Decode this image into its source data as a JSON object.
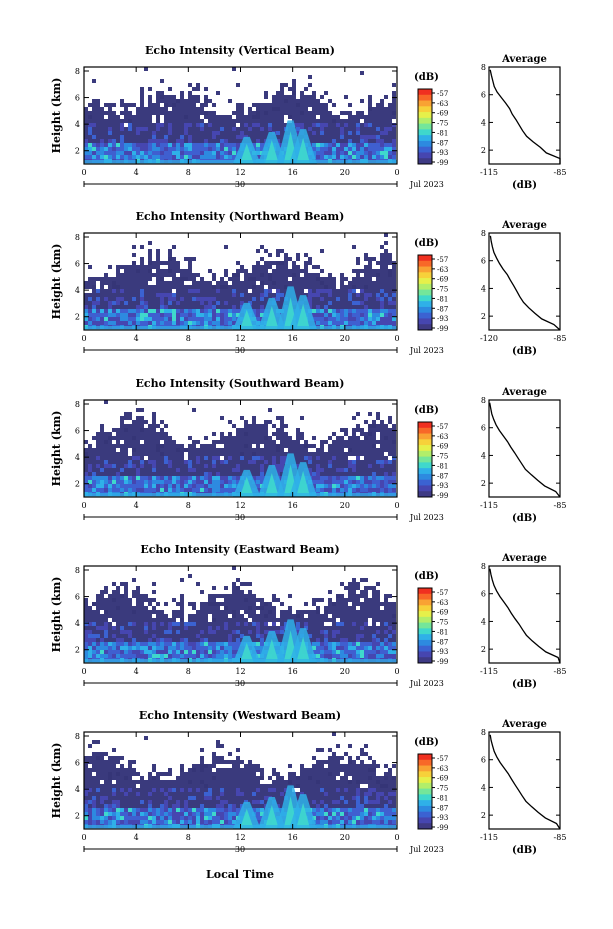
{
  "chart_data": {
    "type": "heatmap",
    "x_ticks": [
      "0",
      "4",
      "8",
      "12",
      "16",
      "20",
      "0"
    ],
    "x_date_label": "30",
    "x_month_year": "Jul 2023",
    "xlabel_bottom": "Local Time",
    "ylabel": "Height (km)",
    "y_ticks": [
      "2",
      "4",
      "6",
      "8"
    ],
    "ylim": [
      1,
      8.3
    ],
    "colorbar": {
      "unit_label": "(dB)",
      "ticks": [
        "-57",
        "-63",
        "-69",
        "-75",
        "-81",
        "-87",
        "-93",
        "-99"
      ],
      "colors": [
        "#F03020",
        "#F86828",
        "#F9A233",
        "#F7D13A",
        "#E6F04A",
        "#B2EE6A",
        "#74E69A",
        "#3FD8CC",
        "#2FB0E8",
        "#2D8AE0",
        "#3B62D2",
        "#4646B0",
        "#3E3A84"
      ]
    },
    "panels": [
      {
        "title": "Echo Intensity (Vertical Beam)",
        "average": {
          "title": "Average",
          "xlabel": "(dB)",
          "xticks": [
            "-115",
            "-85"
          ],
          "xlim": [
            -115,
            -85
          ],
          "ylim": [
            1,
            8
          ],
          "profile": [
            [
              -82.8,
              1.0
            ],
            [
              -84.5,
              1.4
            ],
            [
              -90.8,
              1.8
            ],
            [
              -93.3,
              2.2
            ],
            [
              -96.4,
              2.6
            ],
            [
              -99.1,
              3.0
            ],
            [
              -100.8,
              3.4
            ],
            [
              -102.2,
              3.8
            ],
            [
              -103.6,
              4.2
            ],
            [
              -105.2,
              4.6
            ],
            [
              -106.3,
              5.0
            ],
            [
              -108.0,
              5.4
            ],
            [
              -109.8,
              5.8
            ],
            [
              -111.6,
              6.2
            ],
            [
              -112.8,
              6.6
            ],
            [
              -113.4,
              7.0
            ],
            [
              -114.0,
              7.4
            ],
            [
              -114.5,
              7.8
            ]
          ]
        }
      },
      {
        "title": "Echo Intensity (Northward Beam)",
        "average": {
          "title": "Average",
          "xlabel": "(dB)",
          "xticks": [
            "-120",
            "-85"
          ],
          "xlim": [
            -120,
            -85
          ],
          "ylim": [
            1,
            8
          ],
          "profile": [
            [
              -84.8,
              1.0
            ],
            [
              -88.0,
              1.4
            ],
            [
              -94.0,
              1.8
            ],
            [
              -97.3,
              2.2
            ],
            [
              -100.4,
              2.6
            ],
            [
              -103.0,
              3.0
            ],
            [
              -104.8,
              3.4
            ],
            [
              -106.3,
              3.8
            ],
            [
              -107.8,
              4.2
            ],
            [
              -109.5,
              4.6
            ],
            [
              -111.0,
              5.0
            ],
            [
              -113.1,
              5.4
            ],
            [
              -114.8,
              5.8
            ],
            [
              -116.3,
              6.2
            ],
            [
              -117.6,
              6.6
            ],
            [
              -118.3,
              7.0
            ],
            [
              -118.9,
              7.4
            ],
            [
              -119.3,
              7.8
            ]
          ]
        }
      },
      {
        "title": "Echo Intensity (Southward Beam)",
        "average": {
          "title": "Average",
          "xlabel": "(dB)",
          "xticks": [
            "-115",
            "-85"
          ],
          "xlim": [
            -115,
            -85
          ],
          "ylim": [
            1,
            8
          ],
          "profile": [
            [
              -84.5,
              1.0
            ],
            [
              -86.8,
              1.4
            ],
            [
              -91.5,
              1.8
            ],
            [
              -94.4,
              2.2
            ],
            [
              -97.1,
              2.6
            ],
            [
              -99.6,
              3.0
            ],
            [
              -101.2,
              3.4
            ],
            [
              -102.7,
              3.8
            ],
            [
              -104.2,
              4.2
            ],
            [
              -105.8,
              4.6
            ],
            [
              -107.2,
              5.0
            ],
            [
              -108.9,
              5.4
            ],
            [
              -110.6,
              5.8
            ],
            [
              -112.0,
              6.2
            ],
            [
              -113.0,
              6.6
            ],
            [
              -113.8,
              7.0
            ],
            [
              -114.3,
              7.4
            ],
            [
              -114.7,
              7.8
            ]
          ]
        }
      },
      {
        "title": "Echo Intensity (Eastward Beam)",
        "average": {
          "title": "Average",
          "xlabel": "(dB)",
          "xticks": [
            "-115",
            "-85"
          ],
          "xlim": [
            -115,
            -85
          ],
          "ylim": [
            1,
            8
          ],
          "profile": [
            [
              -84.0,
              1.0
            ],
            [
              -85.8,
              1.4
            ],
            [
              -91.0,
              1.8
            ],
            [
              -94.0,
              2.2
            ],
            [
              -96.8,
              2.6
            ],
            [
              -99.2,
              3.0
            ],
            [
              -100.8,
              3.4
            ],
            [
              -102.3,
              3.8
            ],
            [
              -104.0,
              4.2
            ],
            [
              -105.6,
              4.6
            ],
            [
              -107.0,
              5.0
            ],
            [
              -108.7,
              5.4
            ],
            [
              -110.4,
              5.8
            ],
            [
              -111.8,
              6.2
            ],
            [
              -112.9,
              6.6
            ],
            [
              -113.6,
              7.0
            ],
            [
              -114.2,
              7.4
            ],
            [
              -114.6,
              7.8
            ]
          ]
        }
      },
      {
        "title": "Echo Intensity (Westward Beam)",
        "average": {
          "title": "Average",
          "xlabel": "(dB)",
          "xticks": [
            "-115",
            "-85"
          ],
          "xlim": [
            -115,
            -85
          ],
          "ylim": [
            1,
            8
          ],
          "profile": [
            [
              -84.3,
              1.0
            ],
            [
              -86.5,
              1.4
            ],
            [
              -91.2,
              1.8
            ],
            [
              -94.2,
              2.2
            ],
            [
              -96.9,
              2.6
            ],
            [
              -99.4,
              3.0
            ],
            [
              -101.0,
              3.4
            ],
            [
              -102.5,
              3.8
            ],
            [
              -104.0,
              4.2
            ],
            [
              -105.5,
              4.6
            ],
            [
              -106.9,
              5.0
            ],
            [
              -108.6,
              5.4
            ],
            [
              -110.3,
              5.8
            ],
            [
              -111.7,
              6.2
            ],
            [
              -112.8,
              6.6
            ],
            [
              -113.5,
              7.0
            ],
            [
              -114.1,
              7.4
            ],
            [
              -114.5,
              7.8
            ]
          ]
        }
      }
    ]
  }
}
